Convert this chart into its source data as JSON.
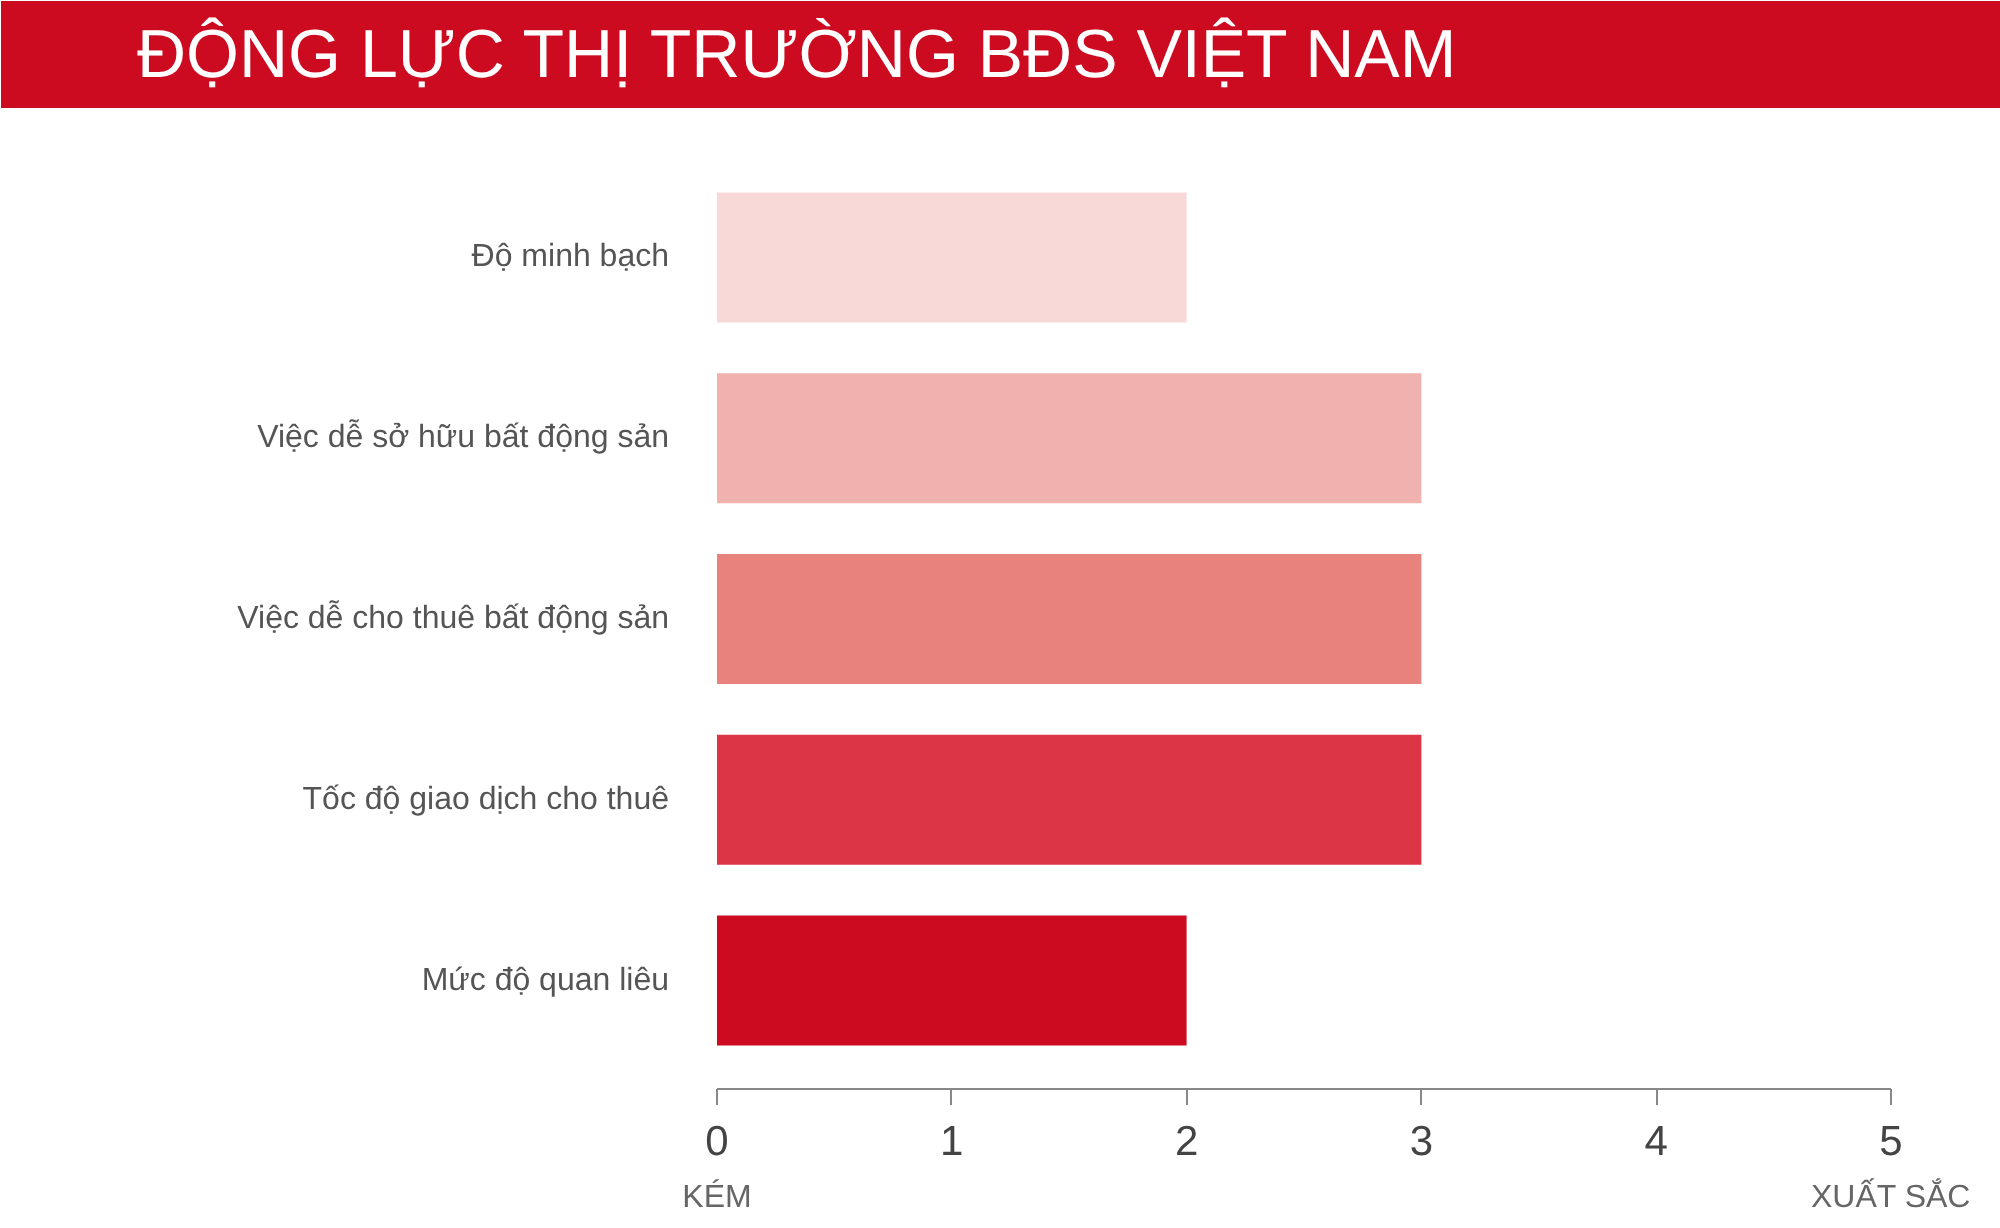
{
  "chart_data": {
    "type": "bar",
    "orientation": "horizontal",
    "title": "ĐỘNG LỰC THỊ TRƯỜNG BĐS VIỆT NAM",
    "categories": [
      "Độ minh bạch",
      "Việc dễ sở hữu bất động sản",
      "Việc dễ cho thuê bất động sản",
      "Tốc độ giao dịch cho thuê",
      "Mức độ quan liêu"
    ],
    "values": [
      2,
      3,
      3,
      3,
      2
    ],
    "colors": [
      "#f9d9d8",
      "#f0b2ae",
      "#e8827c",
      "#dc3546",
      "#cc0a20"
    ],
    "xlim": [
      0,
      5
    ],
    "xticks": [
      0,
      1,
      2,
      3,
      4,
      5
    ],
    "grid": false,
    "annotations": [
      "KÉM",
      "XUẤT SẮC"
    ]
  }
}
